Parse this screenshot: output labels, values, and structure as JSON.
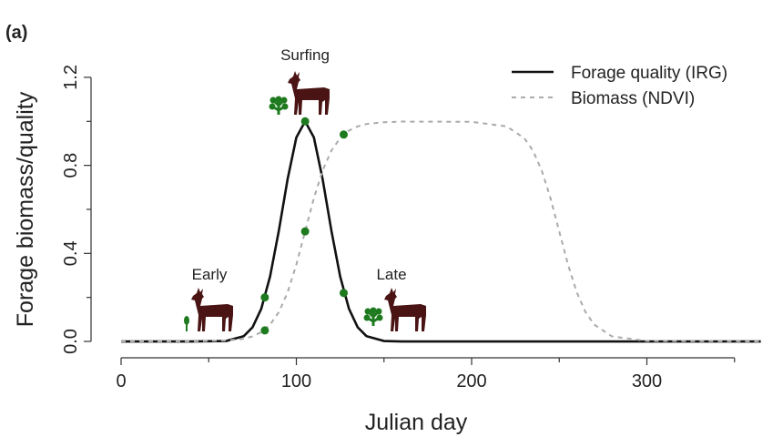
{
  "chart_data": {
    "type": "line",
    "panel_label": "(a)",
    "xlabel": "Julian day",
    "ylabel": "Forage biomass/quality",
    "xlim": [
      -10,
      370
    ],
    "ylim": [
      -0.05,
      1.35
    ],
    "xticks": [
      0,
      100,
      200,
      300
    ],
    "xminorticks": [
      50,
      150,
      250,
      350
    ],
    "yticks": [
      {
        "value": 0,
        "label": "0.0"
      },
      {
        "value": 0.4,
        "label": "0.4"
      },
      {
        "value": 0.8,
        "label": "0.8"
      },
      {
        "value": 1.2,
        "label": "1.2"
      }
    ],
    "yminorticks": [
      0.2,
      0.6,
      1.0
    ],
    "x": [
      0,
      20,
      40,
      60,
      70,
      75,
      80,
      85,
      90,
      95,
      100,
      105,
      110,
      115,
      120,
      125,
      130,
      135,
      140,
      150,
      160,
      200,
      220,
      230,
      235,
      240,
      245,
      250,
      255,
      260,
      265,
      270,
      280,
      300,
      365
    ],
    "series": [
      {
        "name": "Forage quality (IRG)",
        "color": "#111111",
        "linestyle": "solid",
        "values": [
          0,
          0,
          0,
          0.002,
          0.024,
          0.064,
          0.149,
          0.295,
          0.503,
          0.737,
          0.927,
          1,
          0.927,
          0.737,
          0.503,
          0.295,
          0.149,
          0.064,
          0.024,
          0.002,
          0,
          0,
          0,
          0,
          0,
          0,
          0,
          0,
          0,
          0,
          0,
          0,
          0,
          0,
          0
        ]
      },
      {
        "name": "Biomass (NDVI)",
        "color": "#aaaaaa",
        "linestyle": "dashed",
        "values": [
          0,
          0,
          0,
          0.004,
          0.012,
          0.023,
          0.042,
          0.076,
          0.133,
          0.223,
          0.349,
          0.5,
          0.651,
          0.777,
          0.867,
          0.924,
          0.958,
          0.977,
          0.988,
          0.996,
          0.999,
          0.998,
          0.977,
          0.924,
          0.867,
          0.777,
          0.651,
          0.5,
          0.349,
          0.223,
          0.133,
          0.076,
          0.023,
          0.002,
          0
        ]
      }
    ],
    "points": {
      "color": "#1e7a1e",
      "x": [
        82,
        82,
        105,
        105,
        127,
        127
      ],
      "values": [
        0.2,
        0.05,
        1.0,
        0.5,
        0.22,
        0.94
      ]
    },
    "annotations": [
      "Surfing",
      "Early",
      "Late"
    ],
    "legend": "top-right"
  }
}
